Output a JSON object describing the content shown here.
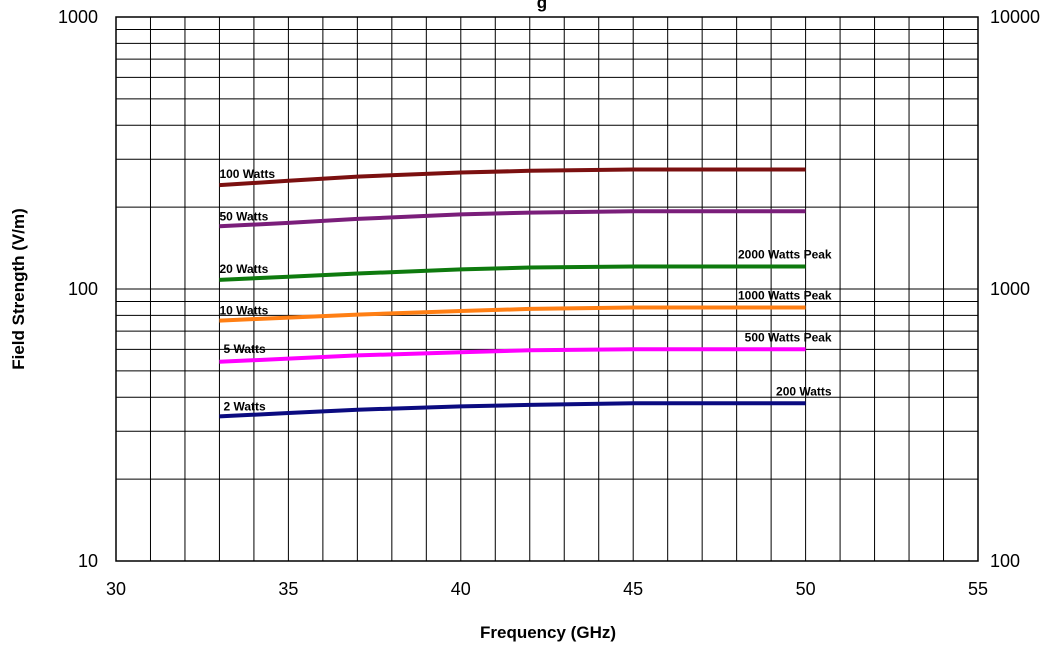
{
  "chart_data": {
    "type": "line",
    "title": "g",
    "xlabel": "Frequency (GHz)",
    "ylabel": "Field Strength (V/m)",
    "xlim": [
      30,
      55
    ],
    "x_ticks": [
      30,
      35,
      40,
      45,
      50,
      55
    ],
    "ylim": [
      10,
      1000
    ],
    "y_scale": "log",
    "y_ticks": [
      "10",
      "100",
      "1000"
    ],
    "y2_ticks": [
      "100",
      "1000",
      "10000"
    ],
    "grid": true,
    "x": [
      33,
      35,
      37,
      40,
      42,
      45,
      47,
      50
    ],
    "series": [
      {
        "name": "100 Watts",
        "color": "#7b1010",
        "values": [
          241,
          250,
          259,
          268,
          272,
          275,
          275,
          275
        ]
      },
      {
        "name": "50 Watts",
        "color": "#7a1e7a",
        "values": [
          170,
          175,
          181,
          188,
          191,
          193,
          193,
          193
        ]
      },
      {
        "name": "20 Watts",
        "color": "#0e7a0e",
        "values": [
          108,
          111,
          114,
          118,
          120,
          121,
          121,
          121
        ]
      },
      {
        "name": "10 Watts",
        "color": "#ff7f14",
        "values": [
          76.5,
          78.5,
          80.5,
          83,
          84.5,
          85.5,
          85.5,
          85.5
        ]
      },
      {
        "name": "5 Watts",
        "color": "#ff00ff",
        "values": [
          54,
          55.5,
          57,
          58.5,
          59.5,
          60,
          60,
          60
        ]
      },
      {
        "name": "2 Watts",
        "color": "#0b0b80",
        "values": [
          34,
          35,
          36,
          37,
          37.5,
          38,
          38,
          38
        ]
      }
    ],
    "annotations": [
      "2000 Watts  Peak",
      "1000 Watts  Peak",
      "500 Watts  Peak",
      "200 Watts"
    ]
  }
}
